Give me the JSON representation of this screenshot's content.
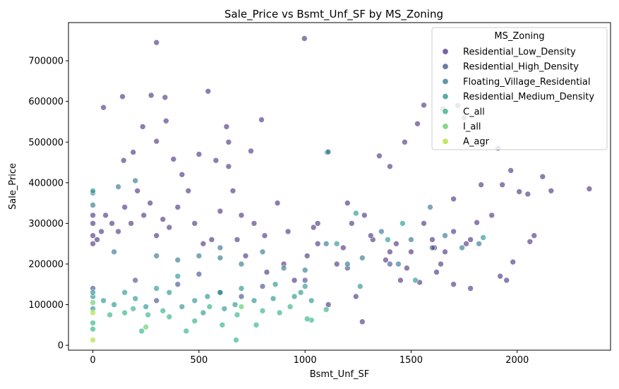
{
  "chart_data": {
    "type": "scatter",
    "title": "Sale_Price vs Bsmt_Unf_SF by MS_Zoning",
    "xlabel": "Bsmt_Unf_SF",
    "ylabel": "Sale_Price",
    "xlim": [
      -115,
      2440
    ],
    "ylim": [
      -12000,
      794000
    ],
    "xticks": [
      0,
      500,
      1000,
      1500,
      2000
    ],
    "yticks": [
      0,
      100000,
      200000,
      300000,
      400000,
      500000,
      600000,
      700000
    ],
    "grid": false,
    "legend_position": "top-right",
    "legend": {
      "title": "MS_Zoning",
      "entries": [
        {
          "name": "Residential_Low_Density",
          "color": "#472f7d"
        },
        {
          "name": "Residential_High_Density",
          "color": "#3e4c8a"
        },
        {
          "name": "Floating_Village_Residential",
          "color": "#2c728e"
        },
        {
          "name": "Residential_Medium_Density",
          "color": "#21918c"
        },
        {
          "name": "C_all",
          "color": "#28ae80"
        },
        {
          "name": "I_all",
          "color": "#5ec962"
        },
        {
          "name": "A_agr",
          "color": "#addc30"
        }
      ]
    },
    "series": [
      {
        "name": "Residential_Low_Density",
        "color": "#472f7d",
        "points": [
          [
            997,
            755000
          ],
          [
            300,
            745000
          ],
          [
            543,
            625000
          ],
          [
            140,
            612000
          ],
          [
            275,
            615000
          ],
          [
            340,
            610000
          ],
          [
            50,
            585000
          ],
          [
            1560,
            591000
          ],
          [
            1650,
            582000
          ],
          [
            345,
            552000
          ],
          [
            795,
            555000
          ],
          [
            1720,
            590000
          ],
          [
            1750,
            560000
          ],
          [
            235,
            538000
          ],
          [
            1530,
            545000
          ],
          [
            300,
            502000
          ],
          [
            630,
            538000
          ],
          [
            640,
            500000
          ],
          [
            1470,
            500000
          ],
          [
            1910,
            485000
          ],
          [
            190,
            475000
          ],
          [
            500,
            470000
          ],
          [
            745,
            478000
          ],
          [
            1350,
            466000
          ],
          [
            1105,
            475000
          ],
          [
            580,
            455000
          ],
          [
            380,
            458000
          ],
          [
            145,
            455000
          ],
          [
            1400,
            440000
          ],
          [
            1970,
            430000
          ],
          [
            2120,
            415000
          ],
          [
            2340,
            385000
          ],
          [
            2050,
            372000
          ],
          [
            2160,
            380000
          ],
          [
            2080,
            270000
          ],
          [
            2060,
            255000
          ],
          [
            1930,
            395000
          ],
          [
            1880,
            320000
          ],
          [
            1830,
            395000
          ],
          [
            1700,
            360000
          ],
          [
            1810,
            302000
          ],
          [
            1760,
            250000
          ],
          [
            1640,
            200000
          ],
          [
            1700,
            150000
          ],
          [
            1950,
            160000
          ],
          [
            1920,
            170000
          ],
          [
            1780,
            140000
          ],
          [
            1980,
            205000
          ],
          [
            2010,
            378000
          ],
          [
            1780,
            260000
          ],
          [
            1600,
            260000
          ],
          [
            1560,
            300000
          ],
          [
            1610,
            240000
          ],
          [
            1660,
            230000
          ],
          [
            1700,
            280000
          ],
          [
            1620,
            180000
          ],
          [
            1540,
            155000
          ],
          [
            1480,
            190000
          ],
          [
            1500,
            230000
          ],
          [
            1430,
            250000
          ],
          [
            1400,
            230000
          ],
          [
            1380,
            210000
          ],
          [
            1450,
            160000
          ],
          [
            1270,
            58000
          ],
          [
            1110,
            100000
          ],
          [
            1240,
            120000
          ],
          [
            1320,
            260000
          ],
          [
            1280,
            320000
          ],
          [
            1200,
            350000
          ],
          [
            1310,
            270000
          ],
          [
            1180,
            240000
          ],
          [
            1220,
            300000
          ],
          [
            1150,
            200000
          ],
          [
            1060,
            300000
          ],
          [
            1040,
            290000
          ],
          [
            1010,
            220000
          ],
          [
            1060,
            250000
          ],
          [
            950,
            160000
          ],
          [
            900,
            200000
          ],
          [
            920,
            280000
          ],
          [
            870,
            350000
          ],
          [
            810,
            270000
          ],
          [
            760,
            300000
          ],
          [
            820,
            180000
          ],
          [
            720,
            220000
          ],
          [
            680,
            260000
          ],
          [
            700,
            320000
          ],
          [
            660,
            380000
          ],
          [
            640,
            440000
          ],
          [
            600,
            330000
          ],
          [
            560,
            260000
          ],
          [
            520,
            250000
          ],
          [
            480,
            300000
          ],
          [
            450,
            380000
          ],
          [
            420,
            420000
          ],
          [
            400,
            340000
          ],
          [
            360,
            290000
          ],
          [
            330,
            310000
          ],
          [
            300,
            270000
          ],
          [
            270,
            350000
          ],
          [
            240,
            320000
          ],
          [
            210,
            380000
          ],
          [
            180,
            300000
          ],
          [
            150,
            340000
          ],
          [
            120,
            280000
          ],
          [
            90,
            300000
          ],
          [
            60,
            320000
          ],
          [
            40,
            280000
          ],
          [
            20,
            260000
          ],
          [
            0,
            250000
          ],
          [
            0,
            270000
          ],
          [
            0,
            300000
          ],
          [
            0,
            320000
          ]
        ]
      },
      {
        "name": "Residential_High_Density",
        "color": "#3e4c8a",
        "points": [
          [
            0,
            140000
          ],
          [
            200,
            160000
          ],
          [
            400,
            150000
          ],
          [
            600,
            130000
          ],
          [
            800,
            145000
          ],
          [
            1000,
            160000
          ],
          [
            1200,
            190000
          ],
          [
            300,
            110000
          ],
          [
            700,
            120000
          ],
          [
            1400,
            200000
          ],
          [
            1600,
            240000
          ],
          [
            500,
            175000
          ]
        ]
      },
      {
        "name": "Floating_Village_Residential",
        "color": "#2c728e",
        "points": [
          [
            0,
            345000
          ],
          [
            0,
            375000
          ],
          [
            200,
            405000
          ],
          [
            120,
            390000
          ],
          [
            1360,
            280000
          ],
          [
            1500,
            260000
          ],
          [
            1590,
            340000
          ],
          [
            1660,
            270000
          ],
          [
            1820,
            250000
          ],
          [
            1740,
            240000
          ],
          [
            1270,
            215000
          ],
          [
            1100,
            250000
          ],
          [
            900,
            190000
          ],
          [
            700,
            200000
          ],
          [
            800,
            230000
          ],
          [
            500,
            220000
          ],
          [
            600,
            240000
          ],
          [
            400,
            210000
          ],
          [
            300,
            220000
          ],
          [
            100,
            230000
          ],
          [
            1440,
            200000
          ],
          [
            1000,
            185000
          ],
          [
            1200,
            200000
          ],
          [
            600,
            215000
          ]
        ]
      },
      {
        "name": "Residential_Medium_Density",
        "color": "#21918c",
        "points": [
          [
            1110,
            476000
          ],
          [
            1240,
            325000
          ],
          [
            1840,
            265000
          ],
          [
            1390,
            260000
          ],
          [
            1150,
            250000
          ],
          [
            1000,
            145000
          ],
          [
            980,
            130000
          ],
          [
            1030,
            110000
          ],
          [
            950,
            120000
          ],
          [
            860,
            150000
          ],
          [
            760,
            110000
          ],
          [
            670,
            100000
          ],
          [
            600,
            130000
          ],
          [
            540,
            120000
          ],
          [
            480,
            110000
          ],
          [
            420,
            95000
          ],
          [
            360,
            130000
          ],
          [
            300,
            140000
          ],
          [
            250,
            95000
          ],
          [
            200,
            115000
          ],
          [
            150,
            130000
          ],
          [
            100,
            100000
          ],
          [
            50,
            110000
          ],
          [
            0,
            120000
          ],
          [
            0,
            90000
          ],
          [
            0,
            130000
          ],
          [
            0,
            380000
          ],
          [
            1460,
            300000
          ],
          [
            1520,
            160000
          ],
          [
            1260,
            145000
          ],
          [
            400,
            170000
          ],
          [
            700,
            140000
          ],
          [
            850,
            115000
          ],
          [
            620,
            90000
          ],
          [
            520,
            80000
          ]
        ]
      },
      {
        "name": "C_all",
        "color": "#28ae80",
        "points": [
          [
            675,
            13000
          ],
          [
            440,
            35000
          ],
          [
            230,
            35000
          ],
          [
            610,
            50000
          ],
          [
            770,
            50000
          ],
          [
            1030,
            62000
          ],
          [
            1010,
            65000
          ],
          [
            880,
            80000
          ],
          [
            800,
            85000
          ],
          [
            480,
            60000
          ],
          [
            360,
            70000
          ],
          [
            150,
            80000
          ],
          [
            80,
            75000
          ],
          [
            0,
            55000
          ],
          [
            0,
            40000
          ],
          [
            550,
            95000
          ],
          [
            330,
            85000
          ],
          [
            260,
            75000
          ],
          [
            190,
            90000
          ],
          [
            680,
            75000
          ],
          [
            1100,
            88000
          ],
          [
            930,
            95000
          ]
        ]
      },
      {
        "name": "I_all",
        "color": "#5ec962",
        "points": [
          [
            0,
            105000
          ],
          [
            250,
            45000
          ],
          [
            700,
            95000
          ]
        ]
      },
      {
        "name": "A_agr",
        "color": "#addc30",
        "points": [
          [
            0,
            13000
          ],
          [
            0,
            80000
          ]
        ]
      }
    ]
  }
}
